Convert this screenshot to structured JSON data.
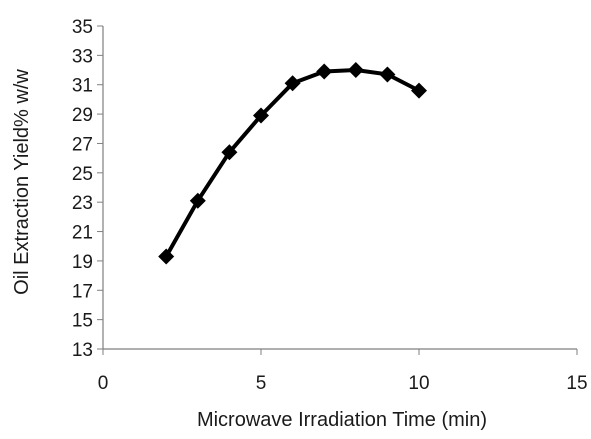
{
  "chart_data": {
    "type": "line",
    "title": "",
    "xlabel": "Microwave Irradiation Time (min)",
    "ylabel": "Oil Extraction Yield% w/w",
    "xlim": [
      0,
      15
    ],
    "ylim": [
      13,
      35
    ],
    "xticks": [
      "0",
      "5",
      "10",
      "15"
    ],
    "yticks": [
      "13",
      "15",
      "17",
      "19",
      "21",
      "23",
      "25",
      "27",
      "29",
      "31",
      "33",
      "35"
    ],
    "grid": false,
    "legend": "none",
    "marker": "diamond",
    "colors": {
      "series": "#000000",
      "axis": "#7f7f7f"
    },
    "series": [
      {
        "x": [
          2,
          3,
          4,
          5,
          6,
          7,
          8,
          9,
          10
        ],
        "values": [
          19.3,
          23.1,
          26.4,
          28.9,
          31.1,
          31.9,
          32.0,
          31.7,
          30.6
        ]
      }
    ]
  }
}
